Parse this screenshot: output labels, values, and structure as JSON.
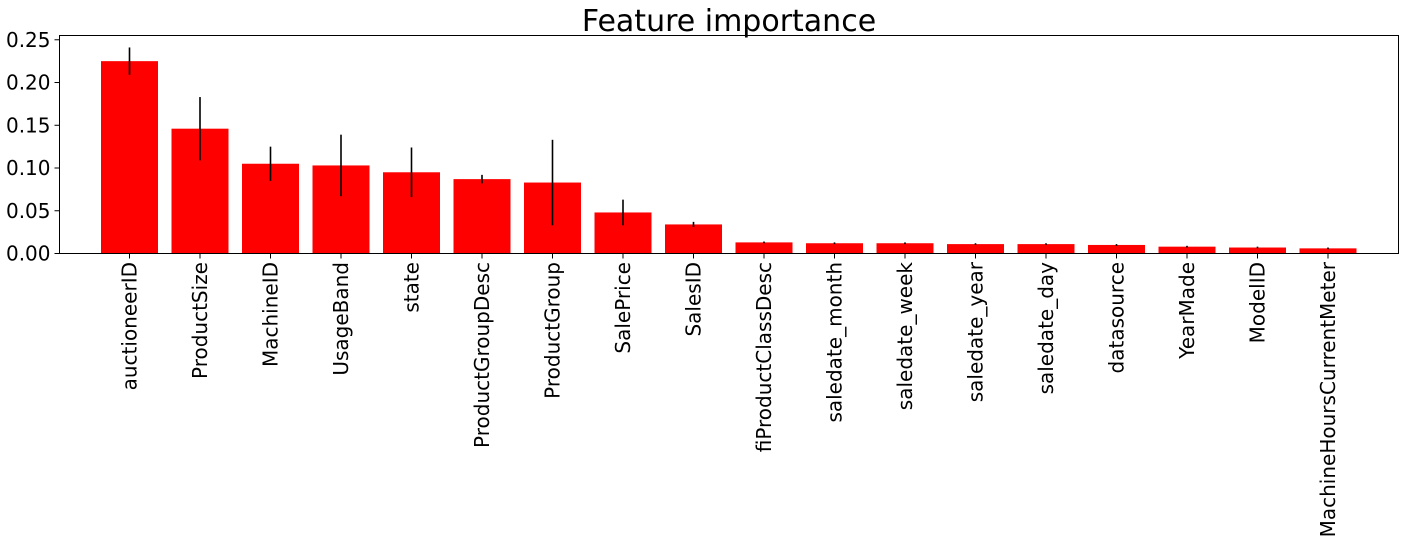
{
  "chart_data": {
    "type": "bar",
    "title": "Feature importance",
    "xlabel": "",
    "ylabel": "",
    "categories": [
      "auctioneerID",
      "ProductSize",
      "MachineID",
      "UsageBand",
      "state",
      "ProductGroupDesc",
      "ProductGroup",
      "SalePrice",
      "SalesID",
      "fiProductClassDesc",
      "saledate_month",
      "saledate_week",
      "saledate_year",
      "saledate_day",
      "datasource",
      "YearMade",
      "ModelID",
      "MachineHoursCurrentMeter"
    ],
    "values": [
      0.225,
      0.146,
      0.105,
      0.103,
      0.095,
      0.087,
      0.083,
      0.048,
      0.034,
      0.013,
      0.012,
      0.012,
      0.011,
      0.011,
      0.01,
      0.008,
      0.007,
      0.006
    ],
    "errors": [
      0.016,
      0.037,
      0.02,
      0.036,
      0.029,
      0.005,
      0.05,
      0.015,
      0.003,
      0.001,
      0.001,
      0.001,
      0.001,
      0.001,
      0.001,
      0.001,
      0.001,
      0.001
    ],
    "ylim": [
      0,
      0.255
    ],
    "yticks": [
      "0.00",
      "0.05",
      "0.10",
      "0.15",
      "0.20",
      "0.25"
    ],
    "ytick_values": [
      0,
      0.05,
      0.1,
      0.15,
      0.2,
      0.25
    ],
    "grid": false,
    "bar_color": "#ff0000",
    "error_color": "#000000"
  }
}
